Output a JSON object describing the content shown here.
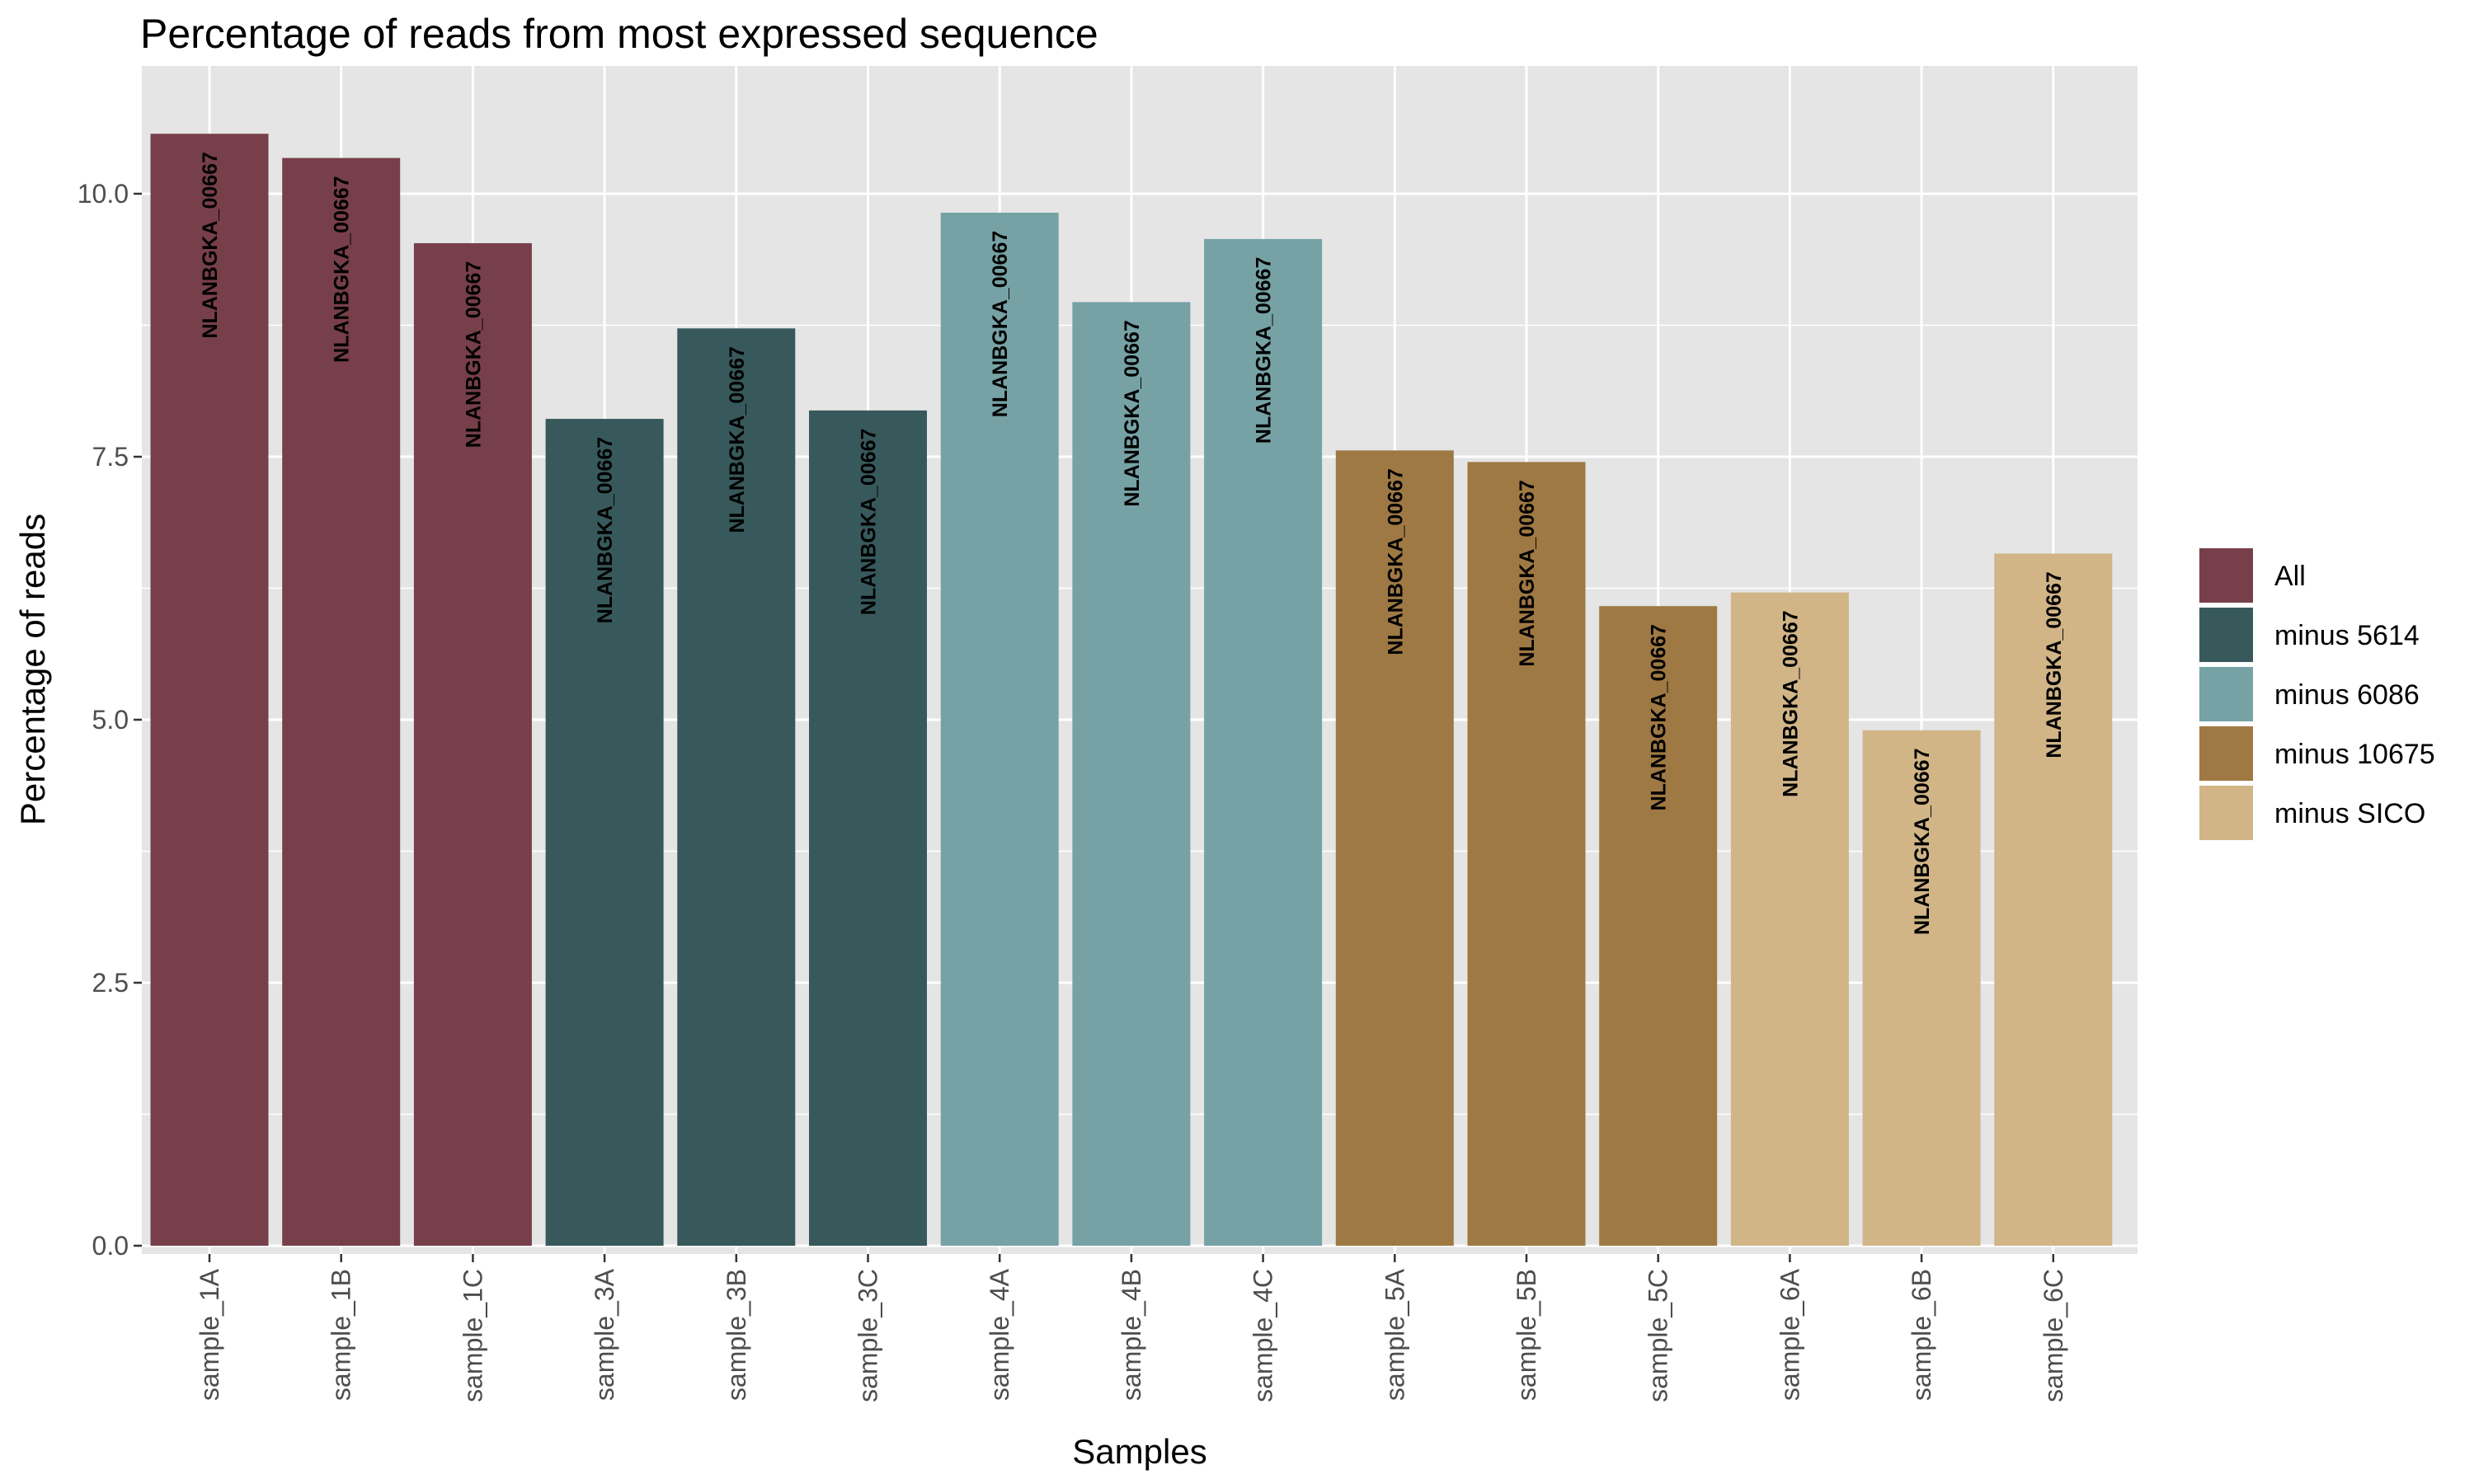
{
  "chart_data": {
    "type": "bar",
    "title": "Percentage of reads from most expressed sequence",
    "xlabel": "Samples",
    "ylabel": "Percentage of reads",
    "ylim": [
      0,
      11
    ],
    "yticks": [
      "0.0",
      "2.5",
      "5.0",
      "7.5",
      "10.0"
    ],
    "ytick_values": [
      0,
      2.5,
      5,
      7.5,
      10
    ],
    "grid": true,
    "legend_position": "right",
    "categories": [
      "sample_1A",
      "sample_1B",
      "sample_1C",
      "sample_3A",
      "sample_3B",
      "sample_3C",
      "sample_4A",
      "sample_4B",
      "sample_4C",
      "sample_5A",
      "sample_5B",
      "sample_5C",
      "sample_6A",
      "sample_6B",
      "sample_6C"
    ],
    "values": [
      10.57,
      10.34,
      9.53,
      7.86,
      8.72,
      7.94,
      9.82,
      8.97,
      9.57,
      7.56,
      7.45,
      6.08,
      6.21,
      4.9,
      6.58
    ],
    "bar_labels": [
      "NLANBGKA_00667",
      "NLANBGKA_00667",
      "NLANBGKA_00667",
      "NLANBGKA_00667",
      "NLANBGKA_00667",
      "NLANBGKA_00667",
      "NLANBGKA_00667",
      "NLANBGKA_00667",
      "NLANBGKA_00667",
      "NLANBGKA_00667",
      "NLANBGKA_00667",
      "NLANBGKA_00667",
      "NLANBGKA_00667",
      "NLANBGKA_00667",
      "NLANBGKA_00667"
    ],
    "groups": [
      "All",
      "All",
      "All",
      "minus 5614",
      "minus 5614",
      "minus 5614",
      "minus 6086",
      "minus 6086",
      "minus 6086",
      "minus 10675",
      "minus 10675",
      "minus 10675",
      "minus SICO",
      "minus SICO",
      "minus SICO"
    ],
    "legend": [
      {
        "name": "All",
        "color": "#773F4A"
      },
      {
        "name": "minus 5614",
        "color": "#37595B"
      },
      {
        "name": "minus 6086",
        "color": "#76A2A5"
      },
      {
        "name": "minus 10675",
        "color": "#9F7943"
      },
      {
        "name": "minus SICO",
        "color": "#D1B587"
      }
    ],
    "panel_background": "#E5E5E5",
    "grid_color": "#FFFFFF"
  }
}
